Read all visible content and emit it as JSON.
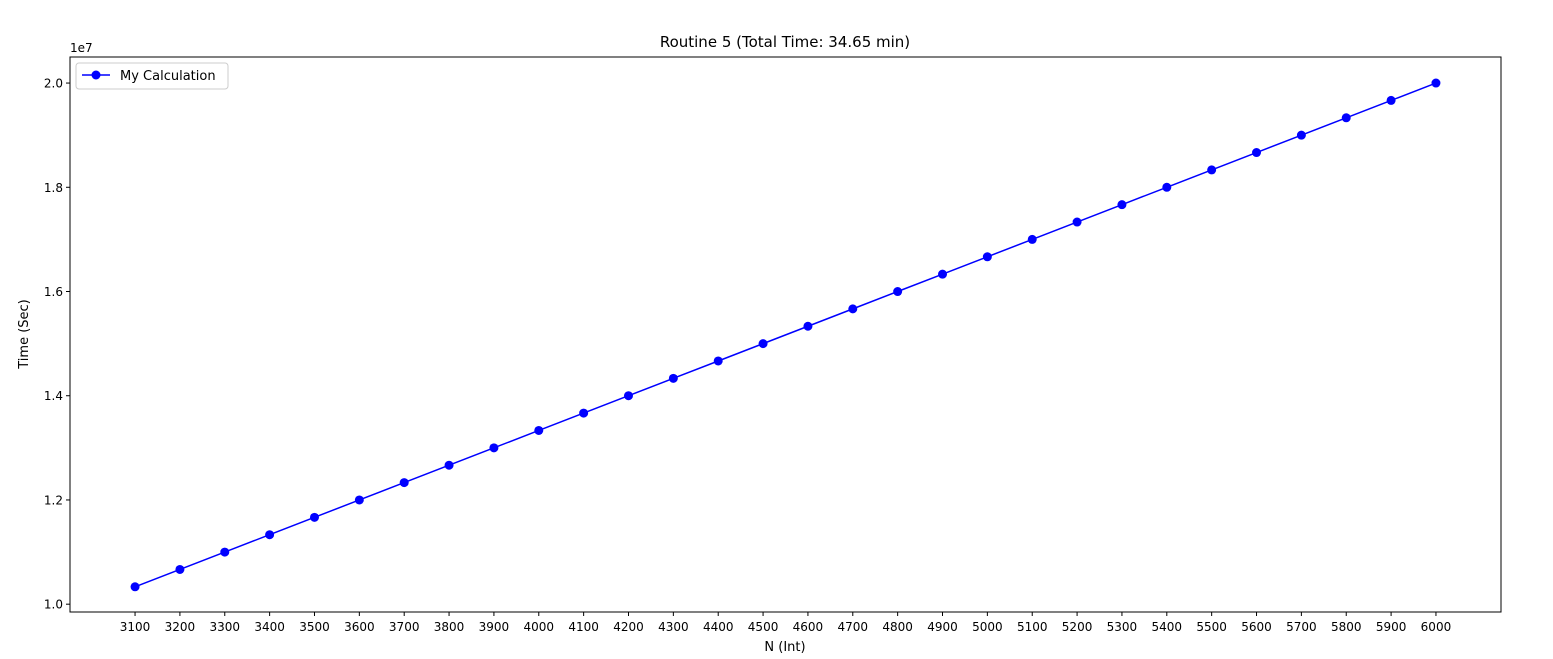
{
  "chart_data": {
    "type": "line",
    "title": "Routine 5 (Total Time: 34.65 min)",
    "xlabel": "N (Int)",
    "ylabel": "Time (Sec)",
    "y_offset_label": "1e7",
    "y_scale_factor": 10000000,
    "xlim": [
      2955,
      6145
    ],
    "ylim": [
      9850000,
      20500000
    ],
    "xticks": [
      3100,
      3200,
      3300,
      3400,
      3500,
      3600,
      3700,
      3800,
      3900,
      4000,
      4100,
      4200,
      4300,
      4400,
      4500,
      4600,
      4700,
      4800,
      4900,
      5000,
      5100,
      5200,
      5300,
      5400,
      5500,
      5600,
      5700,
      5800,
      5900,
      6000
    ],
    "yticks": [
      10000000,
      12000000,
      14000000,
      16000000,
      18000000,
      20000000
    ],
    "ytick_labels": [
      "1.0",
      "1.2",
      "1.4",
      "1.6",
      "1.8",
      "2.0"
    ],
    "grid": false,
    "legend_position": "top-left",
    "series": [
      {
        "name": "My Calculation",
        "color": "#0000ff",
        "marker": "circle",
        "x": [
          3100,
          3200,
          3300,
          3400,
          3500,
          3600,
          3700,
          3800,
          3900,
          4000,
          4100,
          4200,
          4300,
          4400,
          4500,
          4600,
          4700,
          4800,
          4900,
          5000,
          5100,
          5200,
          5300,
          5400,
          5500,
          5600,
          5700,
          5800,
          5900,
          6000
        ],
        "y": [
          10333333,
          10666667,
          11000000,
          11333333,
          11666667,
          12000000,
          12333333,
          12666667,
          13000000,
          13333333,
          13666667,
          14000000,
          14333333,
          14666667,
          15000000,
          15333333,
          15666667,
          16000000,
          16333333,
          16666667,
          17000000,
          17333333,
          17666667,
          18000000,
          18333333,
          18666667,
          19000000,
          19333333,
          19666667,
          20000000
        ]
      }
    ]
  }
}
